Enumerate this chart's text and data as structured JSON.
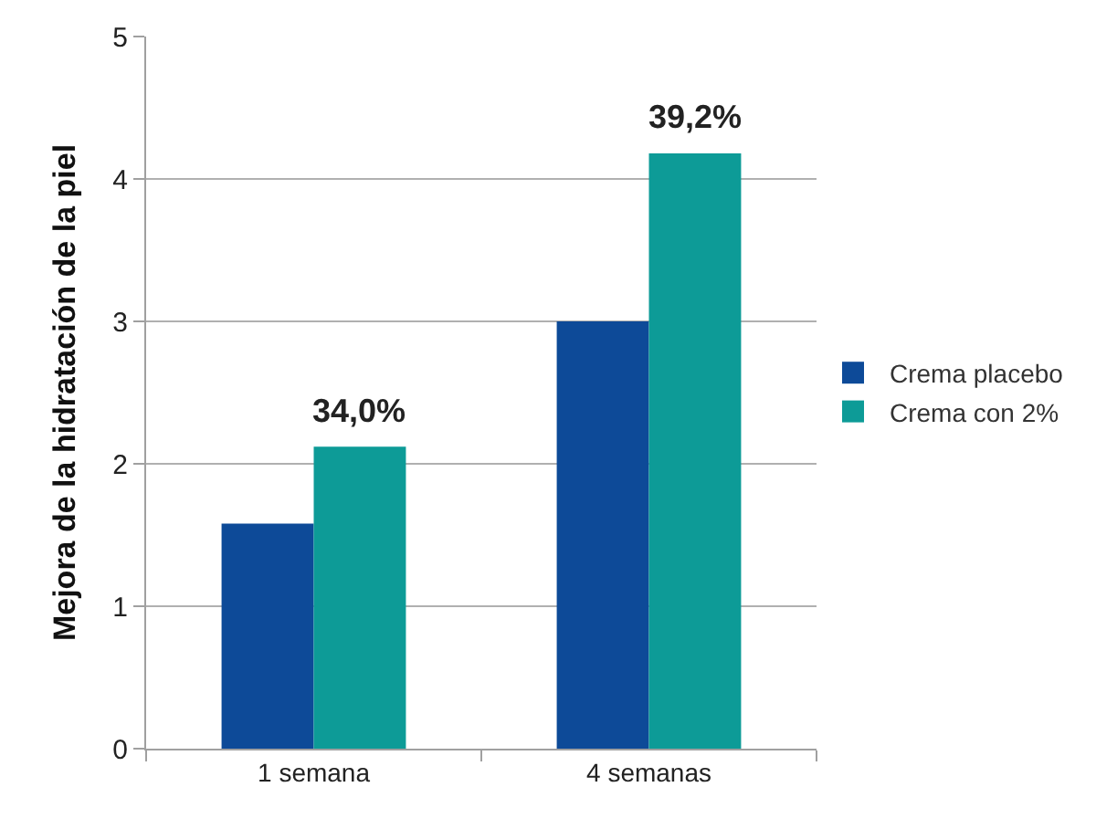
{
  "chart_data": {
    "type": "bar",
    "ylabel": "Mejora de la hidratación de la piel",
    "categories": [
      "1 semana",
      "4 semanas"
    ],
    "series": [
      {
        "name": "Crema placebo",
        "color": "#0d4a98",
        "values": [
          1.58,
          3.0
        ]
      },
      {
        "name": "Crema con 2%",
        "color": "#0d9b97",
        "values": [
          2.12,
          4.18
        ]
      }
    ],
    "ylim": [
      0,
      5
    ],
    "yticks": [
      0,
      1,
      2,
      3,
      4,
      5
    ],
    "grid": "y",
    "legend": "right",
    "annotations": [
      {
        "text": "34,0%",
        "x": "1 semana",
        "y": 2.12
      },
      {
        "text": "39,2%",
        "x": "4 semanas",
        "y": 4.18
      }
    ]
  }
}
